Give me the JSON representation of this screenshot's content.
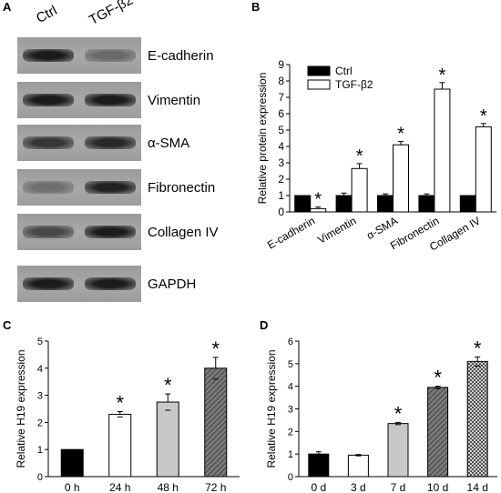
{
  "panels": {
    "a": {
      "letter": "A",
      "lane_labels": [
        "Ctrl",
        "TGF-β2"
      ],
      "blots": [
        {
          "protein": "E-cadherin",
          "ctrl_intensity": 0.95,
          "tgf_intensity": 0.35
        },
        {
          "protein": "Vimentin",
          "ctrl_intensity": 0.95,
          "tgf_intensity": 0.95
        },
        {
          "protein": "α-SMA",
          "ctrl_intensity": 0.75,
          "tgf_intensity": 0.85
        },
        {
          "protein": "Fibronectin",
          "ctrl_intensity": 0.3,
          "tgf_intensity": 0.9
        },
        {
          "protein": "Collagen IV",
          "ctrl_intensity": 0.6,
          "tgf_intensity": 0.95
        },
        {
          "protein": "GAPDH",
          "ctrl_intensity": 0.95,
          "tgf_intensity": 0.95
        }
      ]
    },
    "b": {
      "letter": "B"
    },
    "c": {
      "letter": "C"
    },
    "d": {
      "letter": "D"
    }
  },
  "significance_marker": "*",
  "chart_data": [
    {
      "panel": "B",
      "type": "bar",
      "categories": [
        "E-cadherin",
        "Vimentin",
        "α-SMA",
        "Fibronectin",
        "Collagen IV"
      ],
      "series": [
        {
          "name": "Ctrl",
          "color": "#000000",
          "values": [
            1,
            1,
            1,
            1,
            1
          ],
          "errors": [
            0,
            0.15,
            0.1,
            0.1,
            0
          ],
          "significant": [
            false,
            false,
            false,
            false,
            false
          ]
        },
        {
          "name": "TGF-β2",
          "color": "#ffffff",
          "values": [
            0.2,
            2.65,
            4.1,
            7.5,
            5.2
          ],
          "errors": [
            0.1,
            0.3,
            0.2,
            0.4,
            0.2
          ],
          "significant": [
            true,
            true,
            true,
            true,
            true
          ]
        }
      ],
      "ylabel": "Relative protein expression",
      "xlabel": "",
      "ylim": [
        0,
        9
      ],
      "yticks": [
        0,
        1,
        2,
        3,
        4,
        5,
        6,
        7,
        8,
        9
      ],
      "legend": "top-left",
      "grid": false
    },
    {
      "panel": "C",
      "type": "bar",
      "categories": [
        "0 h",
        "24 h",
        "48 h",
        "72 h"
      ],
      "values": [
        1.0,
        2.3,
        2.75,
        4.0
      ],
      "errors": [
        0,
        0.1,
        0.3,
        0.4
      ],
      "significant": [
        false,
        true,
        true,
        true
      ],
      "fills": [
        "black",
        "white",
        "lightgray",
        "hatch-dark"
      ],
      "ylabel": "Relative H19 expression",
      "xlabel": "",
      "ylim": [
        0,
        5
      ],
      "yticks": [
        0,
        1,
        2,
        3,
        4,
        5
      ],
      "grid": false
    },
    {
      "panel": "D",
      "type": "bar",
      "categories": [
        "0 d",
        "3 d",
        "7 d",
        "10 d",
        "14 d"
      ],
      "values": [
        1.0,
        0.95,
        2.35,
        3.95,
        5.1
      ],
      "errors": [
        0.1,
        0.03,
        0.05,
        0.05,
        0.2
      ],
      "significant": [
        false,
        false,
        true,
        true,
        true
      ],
      "fills": [
        "black",
        "white",
        "lightgray",
        "hatch-dark",
        "crosshatch"
      ],
      "ylabel": "Relative H19 expression",
      "xlabel": "",
      "ylim": [
        0,
        6
      ],
      "yticks": [
        0,
        1,
        2,
        3,
        4,
        5,
        6
      ],
      "grid": false
    }
  ]
}
